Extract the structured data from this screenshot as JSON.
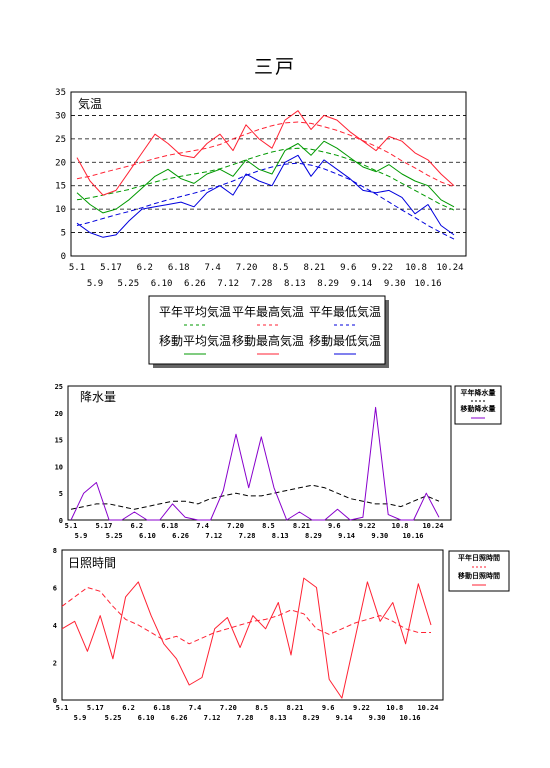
{
  "page": {
    "title": "三戸"
  },
  "colors": {
    "green": "#009900",
    "red": "#ff2233",
    "blue": "#0000dd",
    "purple": "#8800cc",
    "black": "#000000"
  },
  "chart_data": [
    {
      "type": "line",
      "title": "気温",
      "x_tick_labels_row1": [
        "5.1",
        "5.17",
        "6.2",
        "6.18",
        "7.4",
        "7.20",
        "8.5",
        "8.21",
        "9.6",
        "9.22",
        "10.8",
        "10.24"
      ],
      "x_tick_labels_row2": [
        "5.9",
        "5.25",
        "6.10",
        "6.26",
        "7.12",
        "7.28",
        "8.13",
        "8.29",
        "9.14",
        "9.30",
        "10.16"
      ],
      "ylim": [
        0,
        35
      ],
      "y_ticks": [
        "0",
        "5",
        "10",
        "15",
        "20",
        "25",
        "30",
        "35"
      ],
      "legend": {
        "normal_labels": [
          "平年平均気温",
          "平年最高気温",
          "平年最低気温"
        ],
        "moving_labels": [
          "移動平均気温",
          "移動最高気温",
          "移動最低気温"
        ]
      },
      "series": [
        {
          "name": "平年平均気温",
          "color": "green",
          "style": "dashed",
          "values": [
            12.0,
            12.4,
            13.0,
            13.6,
            14.2,
            15.0,
            15.8,
            16.5,
            17.0,
            17.5,
            18.0,
            18.6,
            19.5,
            20.5,
            21.4,
            22.2,
            22.8,
            23.0,
            22.8,
            22.2,
            21.5,
            20.6,
            19.5,
            18.2,
            17.0,
            15.5,
            14.0,
            12.5,
            11.0,
            9.8
          ]
        },
        {
          "name": "平年最高気温",
          "color": "red",
          "style": "dashed",
          "values": [
            16.5,
            17.0,
            17.8,
            18.5,
            19.2,
            20.0,
            20.8,
            21.5,
            22.0,
            22.5,
            23.0,
            23.8,
            25.0,
            26.0,
            27.0,
            27.8,
            28.4,
            28.6,
            28.3,
            27.6,
            26.8,
            25.8,
            24.6,
            23.4,
            22.0,
            20.3,
            18.8,
            17.2,
            15.8,
            14.8
          ]
        },
        {
          "name": "平年最低気温",
          "color": "blue",
          "style": "dashed",
          "values": [
            6.5,
            7.2,
            8.0,
            8.8,
            9.5,
            10.3,
            11.2,
            12.0,
            12.7,
            13.4,
            14.2,
            15.0,
            16.0,
            17.2,
            18.2,
            19.0,
            19.6,
            19.8,
            19.4,
            18.6,
            17.5,
            16.3,
            14.8,
            13.2,
            11.5,
            9.8,
            8.2,
            6.5,
            5.0,
            3.6
          ]
        },
        {
          "name": "移動平均気温",
          "color": "green",
          "style": "solid",
          "values": [
            13.5,
            11.0,
            9.2,
            10.0,
            12.0,
            14.5,
            17.0,
            18.5,
            16.5,
            15.5,
            17.5,
            18.5,
            17.0,
            20.5,
            18.5,
            17.5,
            22.5,
            24.0,
            21.5,
            24.5,
            23.0,
            21.0,
            19.0,
            18.0,
            19.5,
            17.5,
            16.0,
            15.0,
            12.0,
            10.5
          ]
        },
        {
          "name": "移動最高気温",
          "color": "red",
          "style": "solid",
          "values": [
            21.0,
            16.0,
            13.0,
            14.0,
            18.0,
            22.0,
            26.0,
            24.0,
            21.5,
            21.0,
            24.0,
            26.0,
            22.5,
            28.0,
            25.0,
            23.0,
            29.0,
            31.0,
            27.0,
            30.0,
            29.0,
            26.5,
            24.5,
            22.5,
            25.5,
            24.5,
            22.0,
            20.5,
            17.5,
            15.0
          ]
        },
        {
          "name": "移動最低気温",
          "color": "blue",
          "style": "solid",
          "values": [
            7.0,
            5.0,
            4.0,
            4.5,
            7.5,
            10.0,
            10.5,
            11.0,
            11.5,
            10.5,
            13.5,
            15.0,
            13.0,
            17.5,
            16.0,
            15.0,
            20.0,
            21.5,
            17.0,
            20.5,
            18.5,
            16.5,
            14.0,
            13.5,
            14.0,
            12.5,
            9.0,
            11.0,
            6.5,
            4.5
          ]
        }
      ]
    },
    {
      "type": "line",
      "title": "降水量",
      "x_tick_labels_row1": [
        "5.1",
        "5.17",
        "6.2",
        "6.18",
        "7.4",
        "7.20",
        "8.5",
        "8.21",
        "9.6",
        "9.22",
        "10.8",
        "10.24"
      ],
      "x_tick_labels_row2": [
        "5.9",
        "5.25",
        "6.10",
        "6.26",
        "7.12",
        "7.28",
        "8.13",
        "8.29",
        "9.14",
        "9.30",
        "10.16"
      ],
      "ylim": [
        0,
        25
      ],
      "y_ticks": [
        "0",
        "5",
        "10",
        "15",
        "20",
        "25"
      ],
      "legend": {
        "labels": [
          "平年降水量",
          "移動降水量"
        ]
      },
      "series": [
        {
          "name": "平年降水量",
          "color": "black",
          "style": "dashed",
          "values": [
            2.0,
            2.5,
            3.0,
            3.0,
            2.5,
            2.0,
            2.5,
            3.0,
            3.5,
            3.5,
            3.0,
            4.0,
            4.5,
            5.0,
            4.5,
            4.5,
            5.0,
            5.5,
            6.0,
            6.5,
            6.0,
            5.0,
            4.0,
            3.5,
            3.0,
            3.0,
            2.5,
            3.5,
            4.5,
            3.5
          ]
        },
        {
          "name": "移動降水量",
          "color": "purple",
          "style": "solid",
          "values": [
            0.0,
            5.0,
            7.0,
            0.0,
            0.0,
            1.5,
            0.0,
            0.0,
            3.0,
            0.5,
            0.0,
            0.0,
            5.5,
            16.0,
            6.0,
            15.5,
            6.0,
            0.0,
            1.5,
            0.0,
            0.0,
            2.0,
            0.0,
            0.5,
            21.0,
            1.0,
            0.0,
            0.0,
            5.0,
            0.5
          ]
        }
      ]
    },
    {
      "type": "line",
      "title": "日照時間",
      "x_tick_labels_row1": [
        "5.1",
        "5.17",
        "6.2",
        "6.18",
        "7.4",
        "7.20",
        "8.5",
        "8.21",
        "9.6",
        "9.22",
        "10.8",
        "10.24"
      ],
      "x_tick_labels_row2": [
        "5.9",
        "5.25",
        "6.10",
        "6.26",
        "7.12",
        "7.28",
        "8.13",
        "8.29",
        "9.14",
        "9.30",
        "10.16"
      ],
      "ylim": [
        0,
        8
      ],
      "y_ticks": [
        "0",
        "2",
        "4",
        "6",
        "8"
      ],
      "legend": {
        "labels": [
          "平年日照時間",
          "移動日照時間"
        ]
      },
      "series": [
        {
          "name": "平年日照時間",
          "color": "red",
          "style": "dashed",
          "values": [
            5.0,
            5.5,
            6.0,
            5.8,
            5.0,
            4.3,
            4.0,
            3.6,
            3.2,
            3.4,
            3.0,
            3.3,
            3.6,
            3.8,
            4.0,
            4.2,
            4.3,
            4.5,
            4.8,
            4.6,
            3.8,
            3.5,
            3.8,
            4.1,
            4.3,
            4.5,
            4.2,
            3.8,
            3.6,
            3.6
          ]
        },
        {
          "name": "移動日照時間",
          "color": "red",
          "style": "solid",
          "values": [
            3.8,
            4.2,
            2.6,
            4.5,
            2.2,
            5.5,
            6.3,
            4.5,
            3.0,
            2.2,
            0.8,
            1.2,
            3.8,
            4.4,
            2.8,
            4.5,
            3.8,
            5.2,
            2.4,
            6.5,
            6.0,
            1.1,
            0.1,
            3.2,
            6.3,
            4.2,
            5.2,
            3.0,
            6.2,
            4.0
          ]
        }
      ]
    }
  ]
}
